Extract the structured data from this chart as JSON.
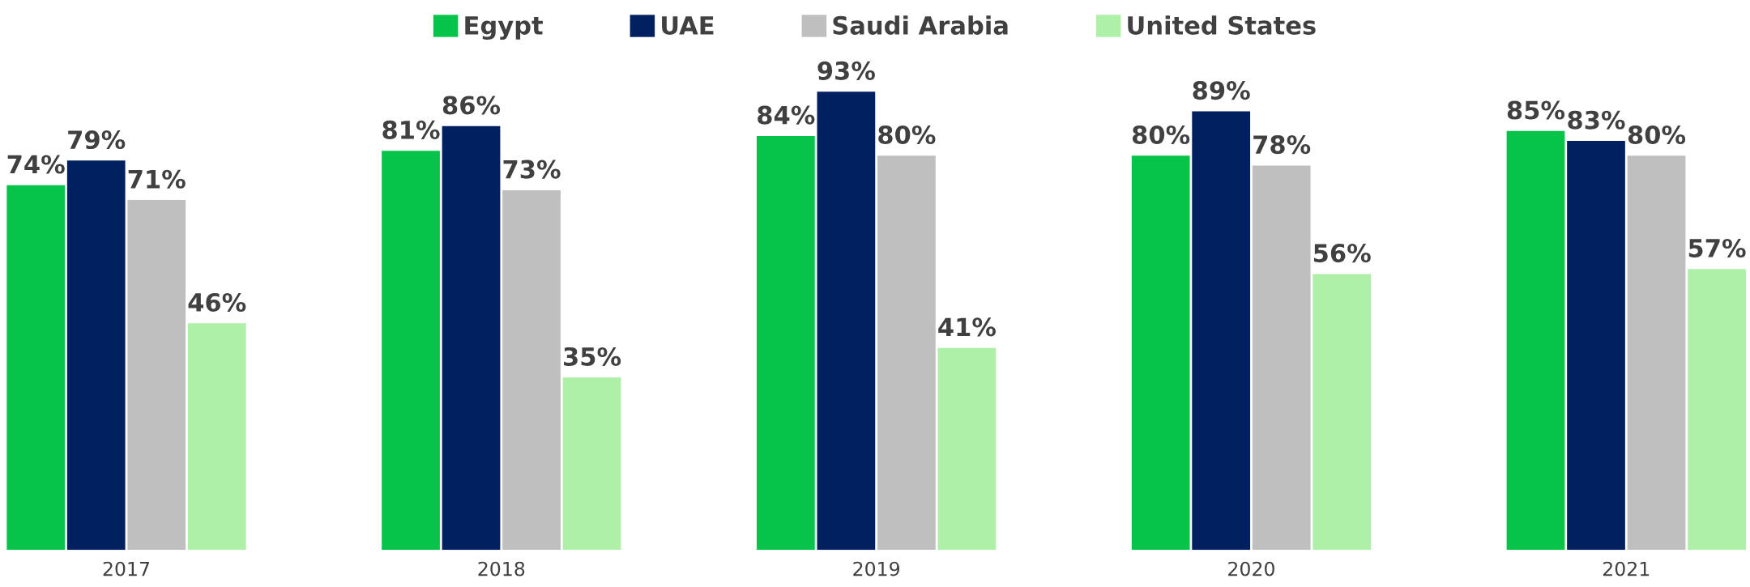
{
  "chart_data": {
    "type": "bar",
    "categories": [
      "2017",
      "2018",
      "2019",
      "2020",
      "2021"
    ],
    "series": [
      {
        "name": "Egypt",
        "color": "#06c44a",
        "values": [
          74,
          81,
          84,
          80,
          85
        ],
        "value_labels": [
          "74%",
          "81%",
          "84%",
          "80%",
          "85%"
        ]
      },
      {
        "name": "UAE",
        "color": "#012060",
        "values": [
          79,
          86,
          93,
          89,
          83
        ],
        "value_labels": [
          "79%",
          "86%",
          "93%",
          "89%",
          "83%"
        ]
      },
      {
        "name": "Saudi Arabia",
        "color": "#bfbfbf",
        "values": [
          71,
          73,
          80,
          78,
          80
        ],
        "value_labels": [
          "71%",
          "73%",
          "80%",
          "78%",
          "80%"
        ]
      },
      {
        "name": "United States",
        "color": "#aff0a8",
        "values": [
          46,
          35,
          41,
          56,
          57
        ],
        "value_labels": [
          "46%",
          "35%",
          "41%",
          "56%",
          "57%"
        ]
      }
    ],
    "legend": "top",
    "grid": false,
    "tick_labels": "x"
  }
}
